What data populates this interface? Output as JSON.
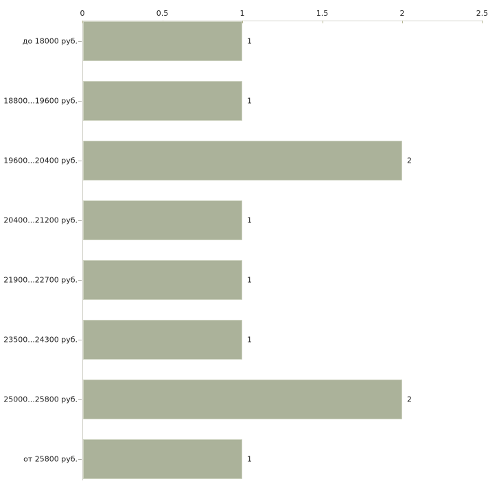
{
  "chart_data": {
    "type": "bar",
    "orientation": "horizontal",
    "title": "",
    "xlabel": "",
    "ylabel": "",
    "categories": [
      "до 18000 руб.",
      "18800...19600 руб.",
      "19600...20400 руб.",
      "20400...21200 руб.",
      "21900...22700 руб.",
      "23500...24300 руб.",
      "25000...25800 руб.",
      "от 25800 руб."
    ],
    "values": [
      1,
      1,
      2,
      1,
      1,
      1,
      2,
      1
    ],
    "bar_labels": [
      "1",
      "1",
      "2",
      "1",
      "1",
      "1",
      "2",
      "1"
    ],
    "xlim": [
      0,
      2.5
    ],
    "xticks": [
      0,
      0.5,
      1,
      1.5,
      2,
      2.5
    ],
    "xtick_labels": [
      "0",
      "0.5",
      "1",
      "1.5",
      "2",
      "2.5"
    ],
    "axis_position": "top",
    "grid": false,
    "legend": false
  },
  "colors": {
    "bar_fill": "#abb29a",
    "bar_border": "#ced3c1",
    "axis_line": "#d2d2ca",
    "tick_mark": "#b5b593",
    "category_tick": "#b0b0a8",
    "text": "#222222",
    "background": "#ffffff"
  }
}
